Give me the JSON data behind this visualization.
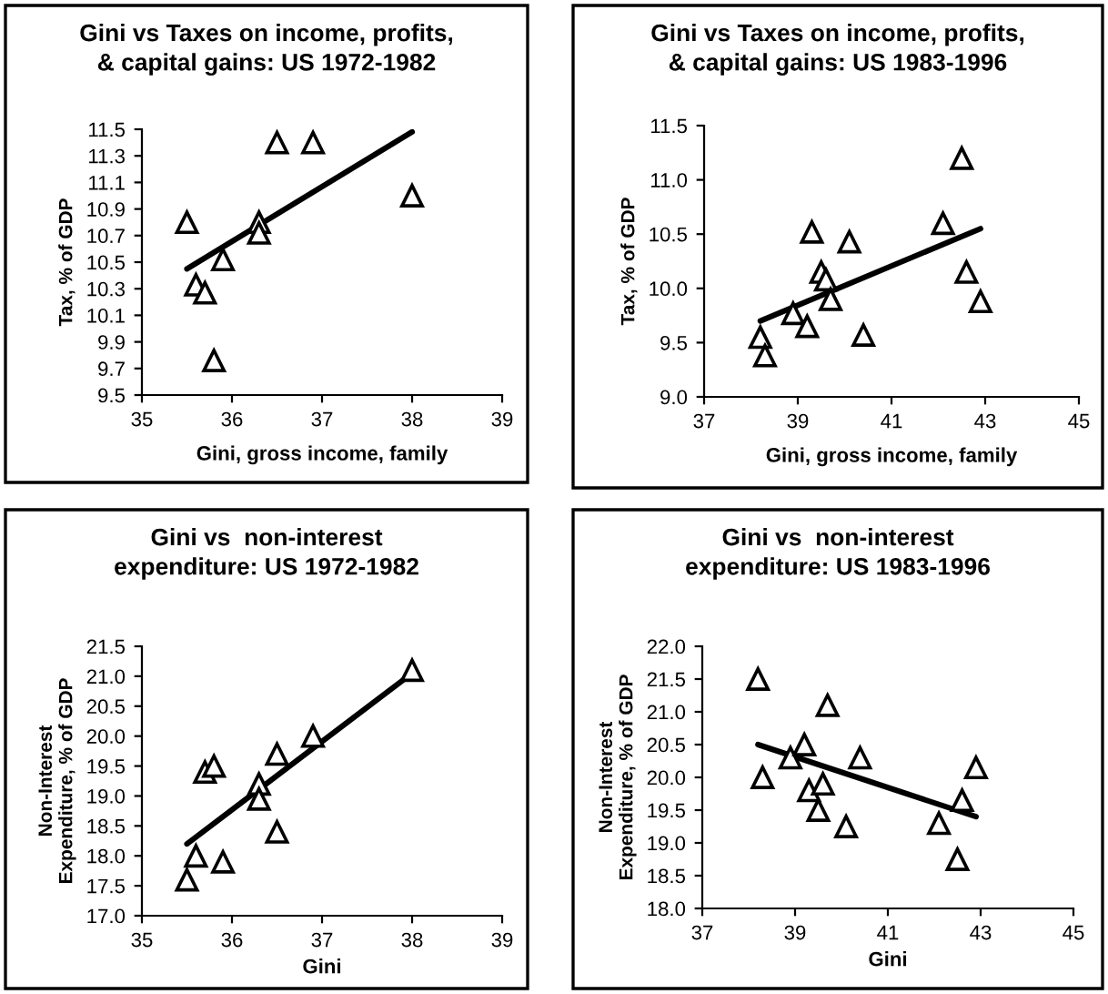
{
  "chart_data": [
    {
      "type": "scatter",
      "title": "Gini vs Taxes on income, profits,\n& capital gains: US 1972-1982",
      "xlabel": "Gini, gross income, family",
      "ylabel": "Tax, % of GDP",
      "xlim": [
        35,
        39
      ],
      "xticks": [
        35,
        36,
        37,
        38,
        39
      ],
      "ylim": [
        9.5,
        11.5
      ],
      "yticks": [
        9.5,
        9.7,
        9.9,
        10.1,
        10.3,
        10.5,
        10.7,
        10.9,
        11.1,
        11.3,
        11.5
      ],
      "grid": false,
      "legend": false,
      "series": [
        {
          "marker": "triangle",
          "color": "#000000",
          "x": [
            35.5,
            35.6,
            35.7,
            35.8,
            35.9,
            36.3,
            36.3,
            36.5,
            36.9,
            38.0
          ],
          "values": [
            10.8,
            10.33,
            10.27,
            9.76,
            10.52,
            10.8,
            10.72,
            11.4,
            11.4,
            11.0
          ]
        },
        {
          "type": "line",
          "color": "#000000",
          "line_style": "solid",
          "x": [
            35.5,
            38.0
          ],
          "values": [
            10.45,
            11.48
          ]
        }
      ]
    },
    {
      "type": "scatter",
      "title": "Gini vs Taxes on income, profits,\n& capital gains: US 1983-1996",
      "xlabel": "Gini, gross income, family",
      "ylabel": "Tax, % of GDP",
      "xlim": [
        37,
        45
      ],
      "xticks": [
        37,
        39,
        41,
        43,
        45
      ],
      "ylim": [
        9.0,
        11.5
      ],
      "yticks": [
        {
          "value": 9.0,
          "label": "9.0"
        },
        9.5,
        {
          "value": 10.0,
          "label": "10.0"
        },
        10.5,
        {
          "value": 11.0,
          "label": "11.0"
        },
        11.5
      ],
      "grid": false,
      "legend": false,
      "series": [
        {
          "marker": "triangle",
          "color": "#000000",
          "x": [
            38.2,
            38.3,
            38.9,
            39.2,
            39.3,
            39.5,
            39.6,
            39.7,
            40.1,
            40.4,
            42.1,
            42.5,
            42.6,
            42.9
          ],
          "values": [
            9.55,
            9.38,
            9.77,
            9.65,
            10.52,
            10.15,
            10.08,
            9.9,
            10.43,
            9.57,
            10.6,
            11.2,
            10.15,
            9.88
          ]
        },
        {
          "type": "line",
          "color": "#000000",
          "line_style": "solid",
          "x": [
            38.2,
            42.9
          ],
          "values": [
            9.7,
            10.55
          ]
        }
      ]
    },
    {
      "type": "scatter",
      "title": "Gini vs  non-interest\nexpenditure: US 1972-1982",
      "xlabel": "Gini",
      "ylabel": "Non-Interest\nExpenditure, % of GDP",
      "xlim": [
        35,
        39
      ],
      "xticks": [
        35,
        36,
        37,
        38,
        39
      ],
      "ylim": [
        17.0,
        21.5
      ],
      "yticks": [
        {
          "value": 17.0,
          "label": "17.0"
        },
        17.5,
        {
          "value": 18.0,
          "label": "18.0"
        },
        18.5,
        {
          "value": 19.0,
          "label": "19.0"
        },
        19.5,
        {
          "value": 20.0,
          "label": "20.0"
        },
        20.5,
        {
          "value": 21.0,
          "label": "21.0"
        },
        21.5
      ],
      "grid": false,
      "legend": false,
      "series": [
        {
          "marker": "triangle",
          "color": "#000000",
          "x": [
            35.5,
            35.6,
            35.7,
            35.8,
            35.9,
            36.3,
            36.3,
            36.5,
            36.5,
            36.9,
            38.0
          ],
          "values": [
            17.6,
            18.0,
            19.4,
            19.5,
            17.9,
            19.2,
            18.95,
            19.7,
            18.4,
            20.0,
            21.1
          ]
        },
        {
          "type": "line",
          "color": "#000000",
          "line_style": "solid",
          "x": [
            35.5,
            38.0
          ],
          "values": [
            18.2,
            21.05
          ]
        }
      ]
    },
    {
      "type": "scatter",
      "title": "Gini vs  non-interest\nexpenditure: US 1983-1996",
      "xlabel": "Gini",
      "ylabel": "Non-Interest\nExpenditure, % of GDP",
      "xlim": [
        37,
        45
      ],
      "xticks": [
        37,
        39,
        41,
        43,
        45
      ],
      "ylim": [
        18.0,
        22.0
      ],
      "yticks": [
        {
          "value": 18.0,
          "label": "18.0"
        },
        18.5,
        {
          "value": 19.0,
          "label": "19.0"
        },
        19.5,
        {
          "value": 20.0,
          "label": "20.0"
        },
        20.5,
        {
          "value": 21.0,
          "label": "21.0"
        },
        21.5,
        {
          "value": 22.0,
          "label": "22.0"
        }
      ],
      "grid": false,
      "legend": false,
      "series": [
        {
          "marker": "triangle",
          "color": "#000000",
          "x": [
            38.2,
            38.3,
            38.9,
            39.2,
            39.3,
            39.5,
            39.6,
            39.7,
            40.1,
            40.4,
            42.1,
            42.5,
            42.6,
            42.9
          ],
          "values": [
            21.5,
            20.0,
            20.3,
            20.5,
            19.8,
            19.5,
            19.9,
            21.1,
            19.25,
            20.3,
            19.3,
            18.75,
            19.65,
            20.15
          ]
        },
        {
          "type": "line",
          "color": "#000000",
          "line_style": "solid",
          "x": [
            38.2,
            42.9
          ],
          "values": [
            20.5,
            19.4
          ]
        }
      ]
    }
  ]
}
